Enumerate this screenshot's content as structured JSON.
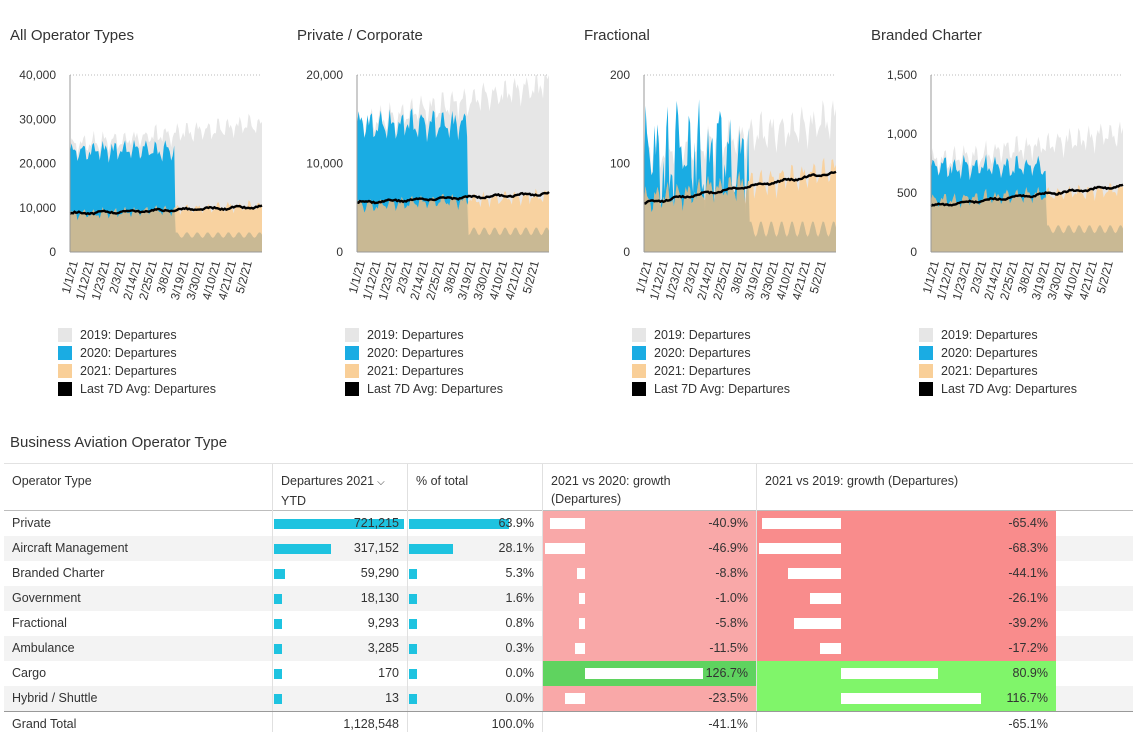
{
  "chart_data": [
    {
      "type": "area",
      "title": "All Operator Types",
      "ylim": [
        0,
        40000
      ],
      "yticks": [
        "40,000",
        "30,000",
        "20,000",
        "10,000",
        "0"
      ],
      "tick_labels": [
        "1/1/21",
        "1/12/21",
        "1/23/21",
        "2/3/21",
        "2/14/21",
        "2/25/21",
        "3/8/21",
        "3/19/21",
        "3/30/21",
        "4/10/21",
        "4/21/21",
        "5/2/21"
      ],
      "series": [
        {
          "name": "2019: Departures",
          "color": "#e6e6e6",
          "base": 24000,
          "amp": 2500,
          "trend": 5000
        },
        {
          "name": "2020: Departures",
          "color": "#1aace3",
          "base": 23000,
          "amp": 2500,
          "end": 0.55
        },
        {
          "name": "2021: Departures",
          "color": "#f9cf98",
          "base": 8500,
          "amp": 1300,
          "trend": 2000
        },
        {
          "name": "Last 7D Avg: Departures",
          "color": "#000000",
          "start": 8700,
          "end": 10200
        }
      ]
    },
    {
      "type": "area",
      "title": "Private / Corporate",
      "ylim": [
        0,
        20000
      ],
      "yticks": [
        "20,000",
        "10,000",
        "0"
      ],
      "tick_labels": [
        "1/1/21",
        "1/12/21",
        "1/23/21",
        "2/3/21",
        "2/14/21",
        "2/25/21",
        "3/8/21",
        "3/19/21",
        "3/30/21",
        "4/10/21",
        "4/21/21",
        "5/2/21"
      ],
      "series": [
        {
          "name": "2019: Departures",
          "color": "#e6e6e6",
          "base": 14500,
          "amp": 1800,
          "trend": 4500
        },
        {
          "name": "2020: Departures",
          "color": "#1aace3",
          "base": 14500,
          "amp": 1800,
          "end": 0.58
        },
        {
          "name": "2021: Departures",
          "color": "#f9cf98",
          "base": 5200,
          "amp": 900,
          "trend": 1200
        },
        {
          "name": "Last 7D Avg: Departures",
          "color": "#000000",
          "start": 5600,
          "end": 6600
        }
      ]
    },
    {
      "type": "area",
      "title": "Fractional",
      "ylim": [
        0,
        200
      ],
      "yticks": [
        "200",
        "100",
        "0"
      ],
      "tick_labels": [
        "1/1/21",
        "1/12/21",
        "1/23/21",
        "2/3/21",
        "2/14/21",
        "2/25/21",
        "3/8/21",
        "3/19/21",
        "3/30/21",
        "4/10/21",
        "4/21/21",
        "5/2/21"
      ],
      "series": [
        {
          "name": "2019: Departures",
          "color": "#e6e6e6",
          "base": 110,
          "amp": 25,
          "trend": 40
        },
        {
          "name": "2020: Departures",
          "color": "#1aace3",
          "base": 110,
          "amp": 45,
          "end": 0.55
        },
        {
          "name": "2021: Departures",
          "color": "#f9cf98",
          "base": 58,
          "amp": 18,
          "trend": 35
        },
        {
          "name": "Last 7D Avg: Departures",
          "color": "#000000",
          "start": 55,
          "end": 90
        }
      ]
    },
    {
      "type": "area",
      "title": "Branded Charter",
      "ylim": [
        0,
        1500
      ],
      "yticks": [
        "1,500",
        "1,000",
        "500",
        "0"
      ],
      "tick_labels": [
        "1/1/21",
        "1/12/21",
        "1/23/21",
        "2/3/21",
        "2/14/21",
        "2/25/21",
        "3/8/21",
        "3/19/21",
        "3/30/21",
        "4/10/21",
        "4/21/21",
        "5/2/21"
      ],
      "series": [
        {
          "name": "2019: Departures",
          "color": "#e6e6e6",
          "base": 760,
          "amp": 120,
          "trend": 250
        },
        {
          "name": "2020: Departures",
          "color": "#1aace3",
          "base": 720,
          "amp": 100,
          "end": 0.6
        },
        {
          "name": "2021: Departures",
          "color": "#f9cf98",
          "base": 430,
          "amp": 70,
          "trend": 100
        },
        {
          "name": "Last 7D Avg: Departures",
          "color": "#000000",
          "start": 390,
          "end": 560
        }
      ]
    }
  ],
  "table": {
    "title": "Business Aviation Operator Type",
    "headers": {
      "type": "Operator Type",
      "departures_line1": "Departures 2021",
      "departures_line2": "YTD",
      "pct": "% of total",
      "g2020_line1": "2021 vs 2020: growth",
      "g2020_line2": "(Departures)",
      "g2019": "2021 vs 2019: growth (Departures)"
    },
    "sort_icon": "chevron-down-icon",
    "rows": [
      {
        "type": "Private",
        "departures": "721,215",
        "dep_value": 721215,
        "pct": "63.9%",
        "pct_value": 63.9,
        "g2020": "-40.9%",
        "g2020_value": -40.9,
        "g2019": "-65.4%",
        "g2019_value": -65.4
      },
      {
        "type": "Aircraft Management",
        "departures": "317,152",
        "dep_value": 317152,
        "pct": "28.1%",
        "pct_value": 28.1,
        "g2020": "-46.9%",
        "g2020_value": -46.9,
        "g2019": "-68.3%",
        "g2019_value": -68.3
      },
      {
        "type": "Branded Charter",
        "departures": "59,290",
        "dep_value": 59290,
        "pct": "5.3%",
        "pct_value": 5.3,
        "g2020": "-8.8%",
        "g2020_value": -8.8,
        "g2019": "-44.1%",
        "g2019_value": -44.1
      },
      {
        "type": "Government",
        "departures": "18,130",
        "dep_value": 18130,
        "pct": "1.6%",
        "pct_value": 1.6,
        "g2020": "-1.0%",
        "g2020_value": -1.0,
        "g2019": "-26.1%",
        "g2019_value": -26.1
      },
      {
        "type": "Fractional",
        "departures": "9,293",
        "dep_value": 9293,
        "pct": "0.8%",
        "pct_value": 0.8,
        "g2020": "-5.8%",
        "g2020_value": -5.8,
        "g2019": "-39.2%",
        "g2019_value": -39.2
      },
      {
        "type": "Ambulance",
        "departures": "3,285",
        "dep_value": 3285,
        "pct": "0.3%",
        "pct_value": 0.3,
        "g2020": "-11.5%",
        "g2020_value": -11.5,
        "g2019": "-17.2%",
        "g2019_value": -17.2
      },
      {
        "type": "Cargo",
        "departures": "170",
        "dep_value": 170,
        "pct": "0.0%",
        "pct_value": 0.0,
        "g2020": "126.7%",
        "g2020_value": 126.7,
        "g2019": "80.9%",
        "g2019_value": 80.9
      },
      {
        "type": "Hybrid / Shuttle",
        "departures": "13",
        "dep_value": 13,
        "pct": "0.0%",
        "pct_value": 0.0,
        "g2020": "-23.5%",
        "g2020_value": -23.5,
        "g2019": "116.7%",
        "g2019_value": 116.7
      }
    ],
    "total": {
      "type": "Grand Total",
      "departures": "1,128,548",
      "pct": "100.0%",
      "g2020": "-41.1%",
      "g2019": "-65.1%"
    },
    "colors": {
      "bar": "#1ec3e0",
      "neg_2020": "#f9a8a8",
      "pos_2020_strong": "#5fd35f",
      "neg_2019": "#f98c8c",
      "pos_2019": "#80f56a"
    }
  }
}
